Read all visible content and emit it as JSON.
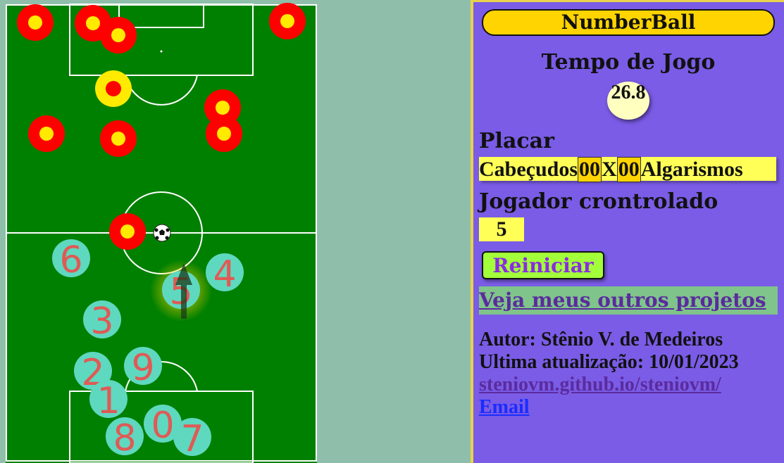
{
  "panel": {
    "title": "NumberBall",
    "time_label": "Tempo de Jogo",
    "time_value": "26.8",
    "placar_label": "Placar",
    "team_left": "Cabeçudos",
    "score_left": "00",
    "score_sep": "X",
    "score_right": "00",
    "team_right": "Algarismos",
    "jogador_label": "Jogador crontrolado",
    "jogador_value": "5",
    "restart_label": "Reiniciar",
    "projects_link": "Veja meus outros projetos",
    "author": "Autor: Stênio V. de Medeiros",
    "updated": "Ultima atualização: 10/01/2023",
    "site_link": "steniovm.github.io/steniovm/",
    "email_link": "Email"
  },
  "colors": {
    "field": "#008000",
    "enemy": "#ff0000",
    "enemy_core": "#ffea00",
    "player": "#5fd8c0",
    "player_number": "#e05a55",
    "panel": "#7a5ce6",
    "highlight": "#ffff58"
  },
  "players": {
    "numbers": [
      "6",
      "4",
      "5",
      "3",
      "2",
      "9",
      "1",
      "8",
      "0",
      "7"
    ],
    "controlled": "5"
  }
}
